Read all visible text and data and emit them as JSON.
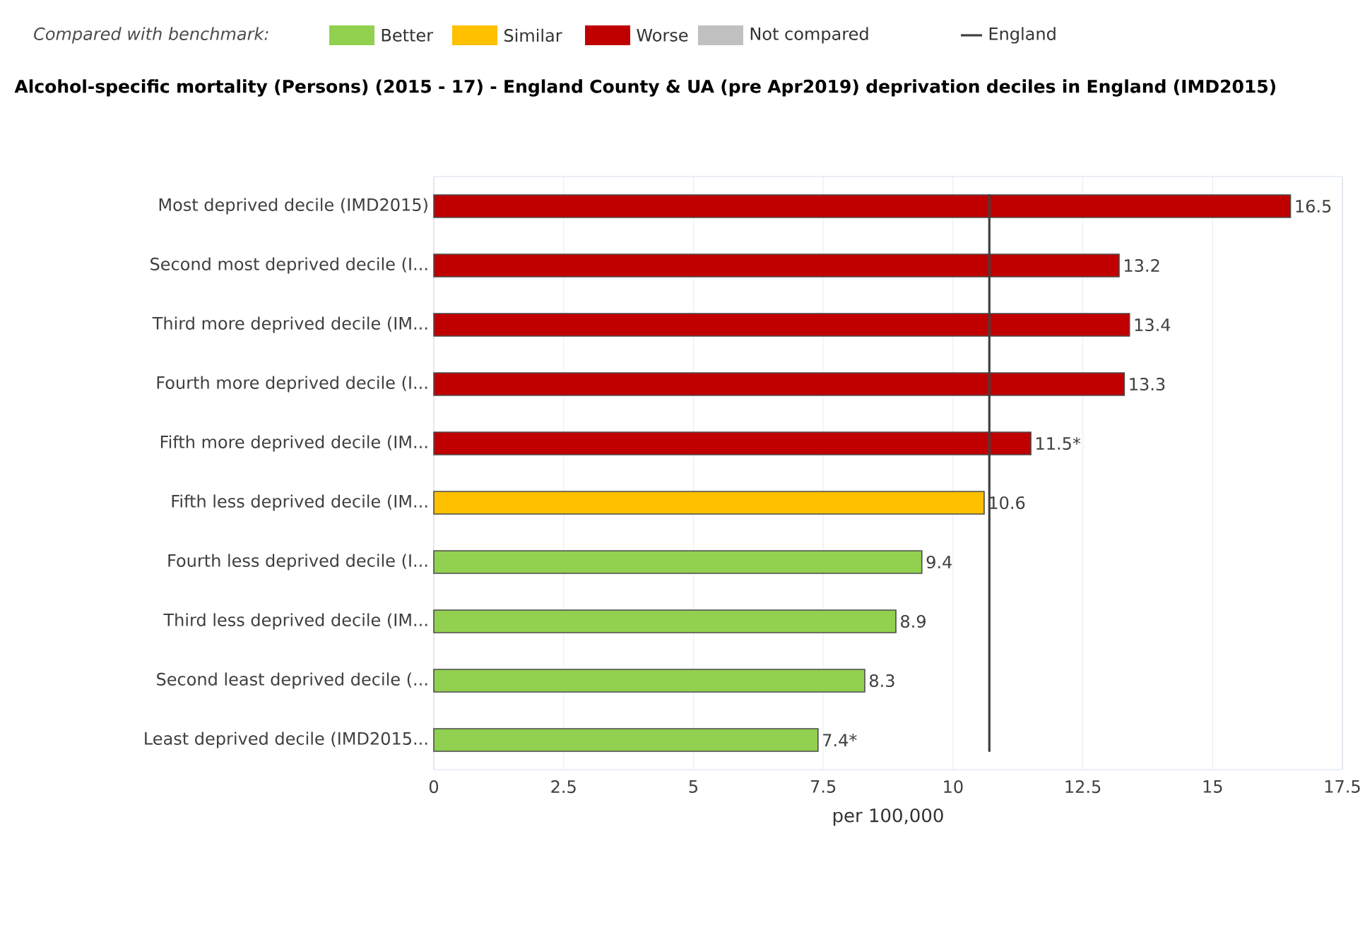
{
  "chart_data": {
    "type": "bar",
    "orientation": "horizontal",
    "title": "Alcohol-specific mortality (Persons) (2015 - 17) - England County & UA (pre Apr2019) deprivation deciles in England (IMD2015)",
    "legend_title": "Compared with benchmark:",
    "xlabel": "per 100,000",
    "categories": [
      "Most deprived decile (IMD2015)",
      "Second most deprived decile (I...",
      "Third more deprived decile (IM...",
      "Fourth more deprived decile (I...",
      "Fifth more deprived decile (IM...",
      "Fifth less deprived decile (IM...",
      "Fourth less deprived decile (I...",
      "Third less deprived decile (IM...",
      "Second least deprived decile (...",
      "Least deprived decile (IMD2015..."
    ],
    "series": [
      {
        "name": "Better",
        "color": "#92d050",
        "values": [
          null,
          null,
          null,
          null,
          null,
          null,
          9.4,
          8.9,
          8.3,
          7.4
        ],
        "value_labels": [
          null,
          null,
          null,
          null,
          null,
          null,
          "9.4",
          "8.9",
          "8.3",
          "7.4*"
        ]
      },
      {
        "name": "Similar",
        "color": "#ffc000",
        "values": [
          null,
          null,
          null,
          null,
          null,
          10.6,
          null,
          null,
          null,
          null
        ],
        "value_labels": [
          null,
          null,
          null,
          null,
          null,
          "10.6",
          null,
          null,
          null,
          null
        ]
      },
      {
        "name": "Worse",
        "color": "#c00000",
        "values": [
          16.5,
          13.2,
          13.4,
          13.3,
          11.5,
          null,
          null,
          null,
          null,
          null
        ],
        "value_labels": [
          "16.5",
          "13.2",
          "13.4",
          "13.3",
          "11.5*",
          null,
          null,
          null,
          null,
          null
        ]
      },
      {
        "name": "Not compared",
        "color": "#c0c0c0",
        "values": [
          null,
          null,
          null,
          null,
          null,
          null,
          null,
          null,
          null,
          null
        ]
      }
    ],
    "xlim": [
      0,
      17.5
    ],
    "xticks": [
      0,
      2.5,
      5,
      7.5,
      10,
      12.5,
      15,
      17.5
    ],
    "grid": "x",
    "legend": "top left",
    "ref_lines": [
      {
        "axis": "x",
        "value": 10.7,
        "label": "England",
        "color": "#404040"
      }
    ]
  }
}
